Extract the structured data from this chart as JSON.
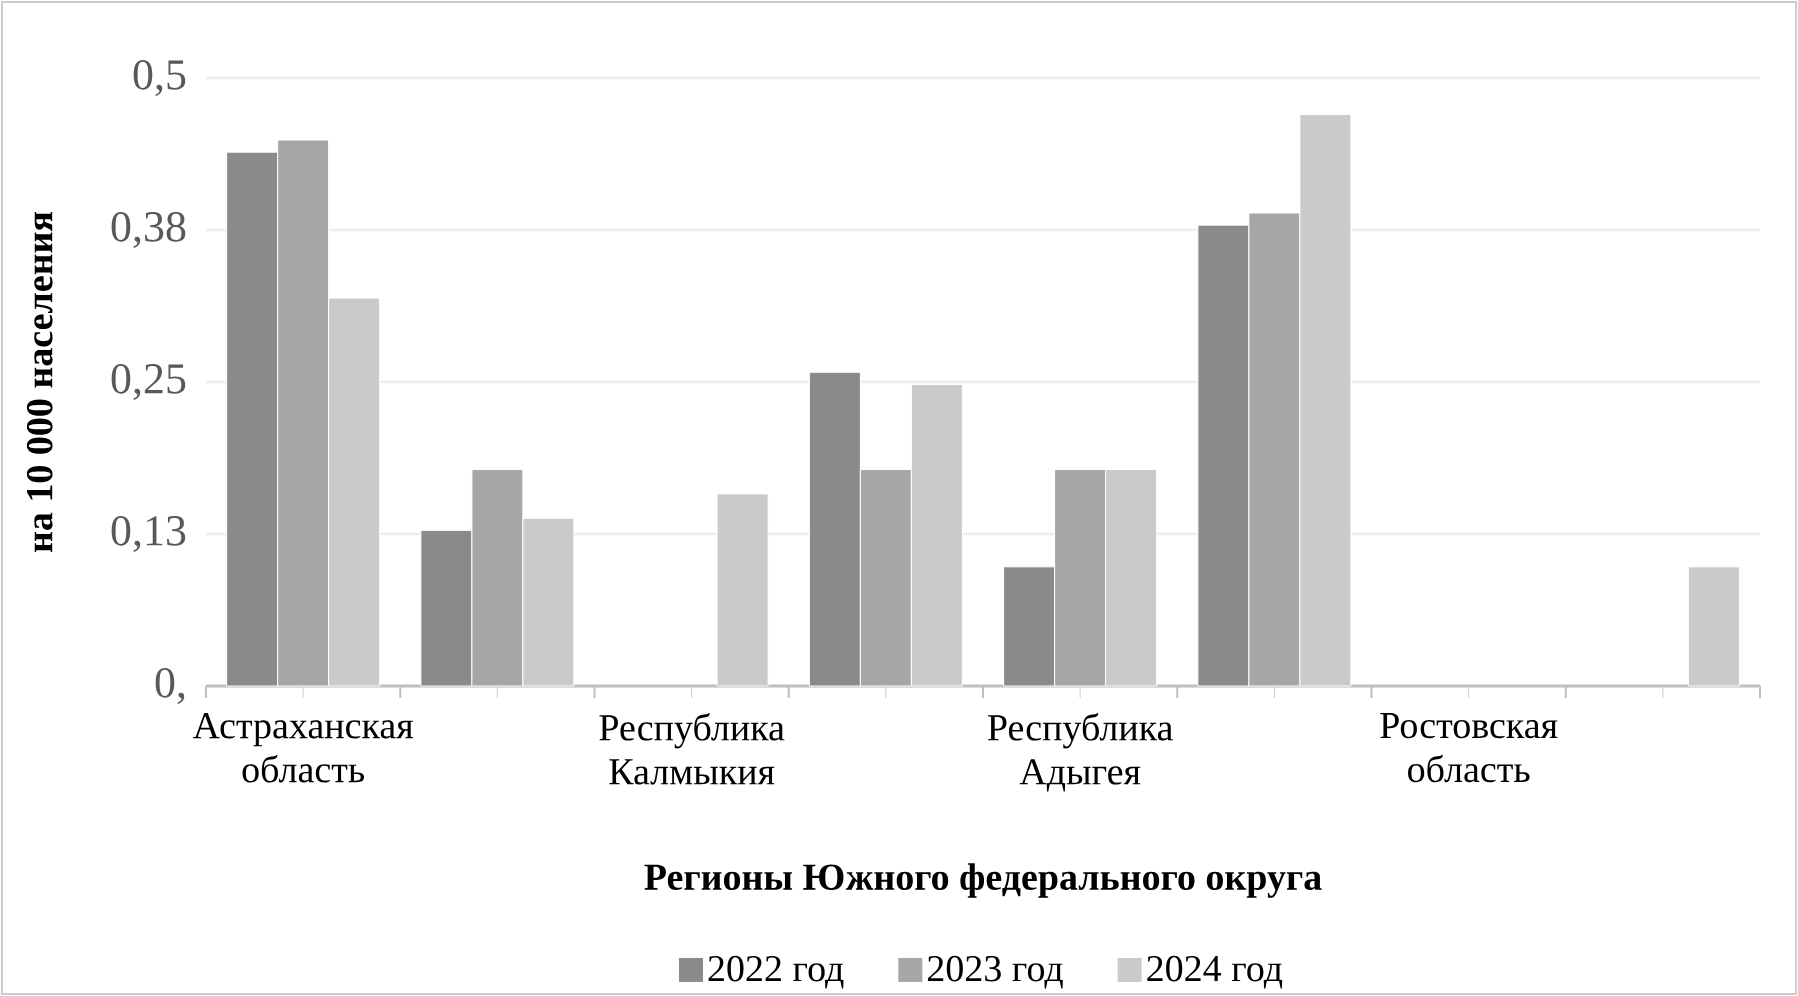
{
  "chart_data": {
    "type": "bar",
    "xlabel": "Регионы Южного федерального округа",
    "ylabel": "на 10 000 населения",
    "categories": [
      "Астраханская область",
      null,
      "Республика Калмыкия",
      null,
      "Республика Адыгея",
      null,
      "Ростовская область",
      null
    ],
    "series": [
      {
        "name": "2022 год",
        "color": "#8a8a8a",
        "values": [
          0.439,
          0.128,
          null,
          0.258,
          0.098,
          0.379,
          null,
          null
        ]
      },
      {
        "name": "2023 год",
        "color": "#a6a6a6",
        "values": [
          0.449,
          0.178,
          null,
          0.178,
          0.178,
          0.389,
          null,
          null
        ]
      },
      {
        "name": "2024 год",
        "color": "#cacaca",
        "values": [
          0.319,
          0.138,
          0.158,
          0.248,
          0.178,
          0.47,
          null,
          0.098
        ]
      }
    ],
    "ylim": [
      0,
      0.5
    ],
    "yticks": [
      {
        "value": 0,
        "label": "0,"
      },
      {
        "value": 0.125,
        "label": "0,13"
      },
      {
        "value": 0.25,
        "label": "0,25"
      },
      {
        "value": 0.375,
        "label": "0,38"
      },
      {
        "value": 0.5,
        "label": "0,5"
      }
    ],
    "grid": "y",
    "legend": "bottom"
  }
}
